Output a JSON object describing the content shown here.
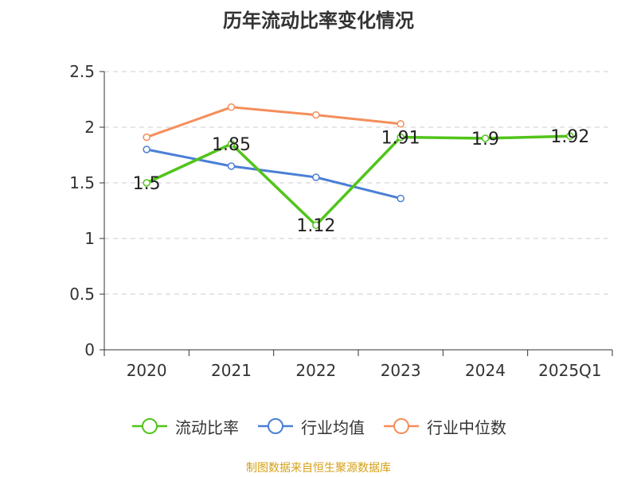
{
  "chart_data": {
    "type": "line",
    "title": "历年流动比率变化情况",
    "categories": [
      "2020",
      "2021",
      "2022",
      "2023",
      "2024",
      "2025Q1"
    ],
    "yticks": [
      "0",
      "0.5",
      "1",
      "1.5",
      "2",
      "2.5"
    ],
    "ylim": [
      0,
      2.5
    ],
    "xlabel": "",
    "ylabel": "",
    "grid": true,
    "series": [
      {
        "name": "流动比率",
        "color": "#52c41a",
        "values": [
          1.5,
          1.85,
          1.12,
          1.91,
          1.9,
          1.92
        ],
        "labels": [
          "1.5",
          "1.85",
          "1.12",
          "1.91",
          "1.9",
          "1.92"
        ]
      },
      {
        "name": "行业均值",
        "color": "#4a7fd6",
        "values": [
          1.8,
          1.65,
          1.55,
          1.36,
          null,
          null
        ]
      },
      {
        "name": "行业中位数",
        "color": "#f58e5a",
        "values": [
          1.91,
          2.18,
          2.11,
          2.03,
          null,
          null
        ]
      }
    ]
  },
  "source": "制图数据来自恒生聚源数据库"
}
